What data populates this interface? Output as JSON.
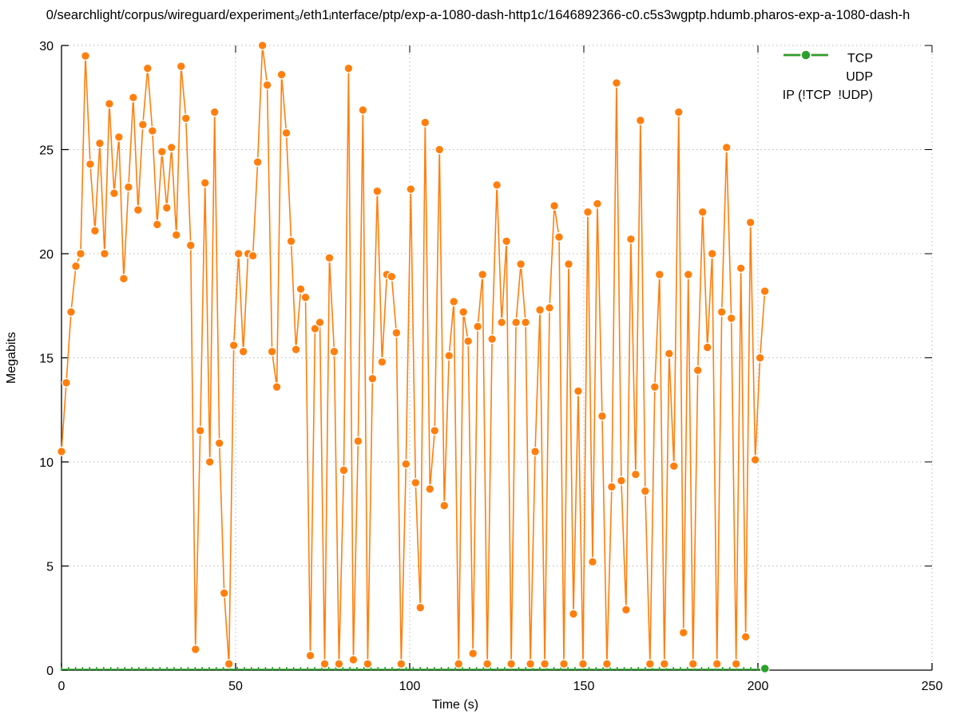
{
  "title": "0/searchlight/corpus/wireguard/experiment₃/eth1ᵢnterface/ptp/exp-a-1080-dash-http1c/1646892366-c0.c5s3wgptp.hdumb.pharos-exp-a-1080-dash-h",
  "chart_data": {
    "type": "line",
    "xlabel": "Time (s)",
    "ylabel": "Megabits",
    "xlim": [
      0,
      250
    ],
    "ylim": [
      0,
      30
    ],
    "x_ticks": [
      0,
      50,
      100,
      150,
      200,
      250
    ],
    "y_ticks": [
      0,
      5,
      10,
      15,
      20,
      25,
      30
    ],
    "grid": "dotted",
    "legend_position": "top-right",
    "colors": {
      "grid": "#b8b8b8",
      "axis": "#000000"
    },
    "series": [
      {
        "name": "TCP",
        "color": "#1f77b4",
        "style": "linespoints",
        "t_start": 0,
        "t_step": 1.374,
        "values": []
      },
      {
        "name": "UDP",
        "color": "#ff7f0e",
        "style": "linespoints",
        "t_start": 0,
        "t_step": 1.374,
        "values": [
          10.5,
          13.8,
          17.2,
          19.4,
          20.0,
          29.5,
          24.3,
          21.1,
          25.3,
          20.0,
          27.2,
          22.9,
          25.6,
          18.8,
          23.2,
          27.5,
          22.1,
          26.2,
          28.9,
          25.9,
          21.4,
          24.9,
          22.2,
          25.1,
          20.9,
          29.0,
          26.5,
          20.4,
          1.0,
          11.5,
          23.4,
          10.0,
          26.8,
          10.9,
          3.7,
          0.3,
          15.6,
          20.0,
          15.3,
          20.0,
          19.9,
          24.4,
          30.0,
          28.1,
          15.3,
          13.6,
          28.6,
          25.8,
          20.6,
          15.4,
          18.3,
          17.9,
          0.7,
          16.4,
          16.7,
          0.3,
          19.8,
          15.3,
          0.3,
          9.6,
          28.9,
          0.5,
          11.0,
          26.9,
          0.3,
          14.0,
          23.0,
          14.8,
          19.0,
          18.9,
          16.2,
          0.3,
          9.9,
          23.1,
          9.0,
          3.0,
          26.3,
          8.7,
          11.5,
          25.0,
          7.9,
          15.1,
          17.7,
          0.3,
          17.2,
          15.8,
          0.8,
          16.5,
          19.0,
          0.3,
          15.9,
          23.3,
          16.7,
          20.6,
          0.3,
          16.7,
          19.5,
          16.7,
          0.3,
          10.5,
          17.3,
          0.3,
          17.4,
          22.3,
          20.8,
          0.3,
          19.5,
          2.7,
          13.4,
          0.3,
          22.0,
          5.2,
          22.4,
          12.2,
          0.3,
          8.8,
          28.2,
          9.1,
          2.9,
          20.7,
          9.4,
          26.4,
          8.6,
          0.3,
          13.6,
          19.0,
          0.3,
          15.2,
          9.8,
          26.8,
          1.8,
          19.0,
          0.3,
          14.4,
          22.0,
          15.5,
          20.0,
          0.3,
          17.2,
          25.1,
          16.9,
          0.3,
          19.3,
          1.6,
          21.5,
          10.1,
          15.0,
          18.2
        ]
      },
      {
        "name": "IP (!TCP  !UDP)",
        "color": "#2ca02c",
        "style": "flatline-with-end-dot",
        "t_start": 0,
        "t_end": 202,
        "marker_step": 2.02,
        "value": 0
      }
    ]
  }
}
